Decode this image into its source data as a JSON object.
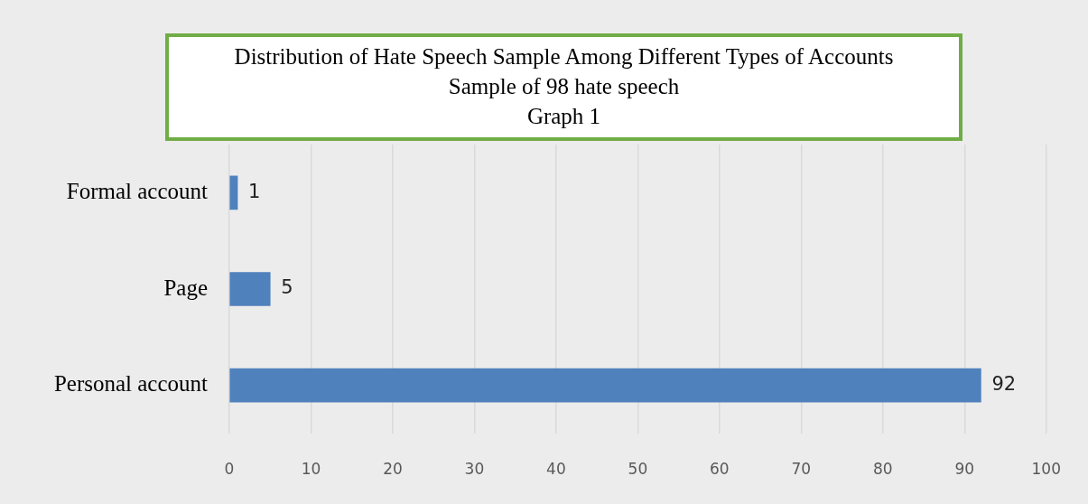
{
  "chart_data": {
    "type": "bar",
    "orientation": "horizontal",
    "title": "Distribution of Hate Speech Sample Among Different Types of Accounts",
    "subtitle": "Sample of 98 hate speech",
    "annotations": [
      "Graph 1"
    ],
    "categories": [
      "Formal account",
      "Page",
      "Personal account"
    ],
    "values": [
      1,
      5,
      92
    ],
    "color": "#4f81bd",
    "xlim": [
      0,
      100
    ],
    "xticks": [
      0,
      10,
      20,
      30,
      40,
      50,
      60,
      70,
      80,
      90,
      100
    ],
    "grid": "x",
    "data_labels": true,
    "legend": false
  }
}
